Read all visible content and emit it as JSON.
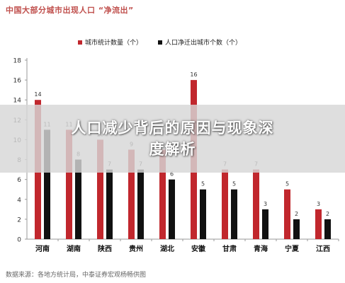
{
  "header": {
    "title": "中国大部分城市出现人口 “净流出”"
  },
  "overlay": {
    "line1": "人口减少背后的原因与现象深",
    "line2": "度解析"
  },
  "source": "数据来源：各地方统计局，中泰证券宏观杨畅供图",
  "colors": {
    "series1": "#c1272d",
    "series2": "#111111"
  },
  "chart_data": {
    "type": "bar",
    "title": "中国大部分城市出现人口 “净流出”",
    "categories": [
      "河南",
      "湖南",
      "陕西",
      "贵州",
      "湖北",
      "安徽",
      "甘肃",
      "青海",
      "宁夏",
      "江西"
    ],
    "series": [
      {
        "name": "城市统计数量（个）",
        "values": [
          14,
          11,
          10,
          9,
          9,
          16,
          7,
          7,
          5,
          3
        ]
      },
      {
        "name": "人口净迁出城市个数（个）",
        "values": [
          11,
          8,
          7,
          7,
          6,
          5,
          5,
          3,
          2,
          2
        ]
      }
    ],
    "yticks": [
      0,
      2,
      4,
      6,
      8,
      10,
      12,
      14,
      16,
      18
    ],
    "ylim": [
      0,
      18
    ],
    "grid": false,
    "legend": "top-center"
  }
}
